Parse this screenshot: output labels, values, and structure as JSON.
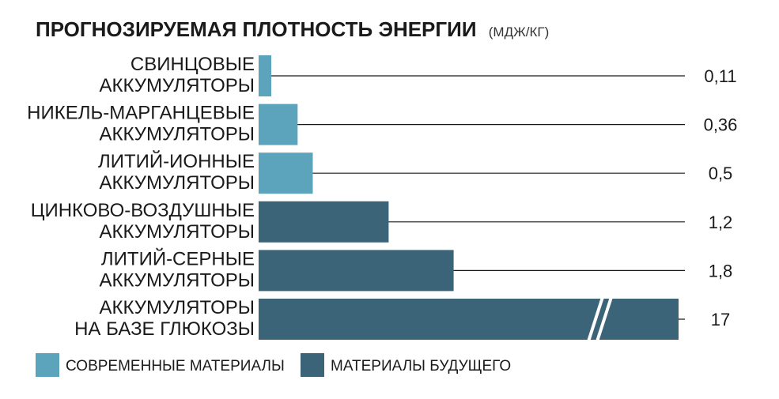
{
  "chart_data": {
    "type": "bar",
    "orientation": "horizontal",
    "title": "ПРОГНОЗИРУЕМАЯ ПЛОТНОСТЬ ЭНЕРГИИ",
    "unit": "(МДЖ/КГ)",
    "categories": [
      [
        "СВИНЦОВЫЕ",
        "АККУМУЛЯТОРЫ"
      ],
      [
        "НИКЕЛЬ-МАРГАНЦЕВЫЕ",
        "АККУМУЛЯТОРЫ"
      ],
      [
        "ЛИТИЙ-ИОННЫЕ",
        "АККУМУЛЯТОРЫ"
      ],
      [
        "ЦИНКОВО-ВОЗДУШНЫЕ",
        "АККУМУЛЯТОРЫ"
      ],
      [
        "ЛИТИЙ-СЕРНЫЕ",
        "АККУМУЛЯТОРЫ"
      ],
      [
        "АККУМУЛЯТОРЫ",
        "НА БАЗЕ ГЛЮКОЗЫ"
      ]
    ],
    "values": [
      0.11,
      0.36,
      0.5,
      1.2,
      1.8,
      17
    ],
    "value_labels": [
      "0,11",
      "0,36",
      "0,5",
      "1,2",
      "1,8",
      "17"
    ],
    "series_index": [
      0,
      0,
      0,
      1,
      1,
      1
    ],
    "series": [
      {
        "name": "СОВРЕМЕННЫЕ МАТЕРИАЛЫ",
        "color": "#5ba4bc"
      },
      {
        "name": "МАТЕРИАЛЫ БУДУЩЕГО",
        "color": "#3b6478"
      }
    ],
    "broken_axis_bars": [
      5
    ],
    "legend_position": "bottom-left",
    "grid": false
  }
}
